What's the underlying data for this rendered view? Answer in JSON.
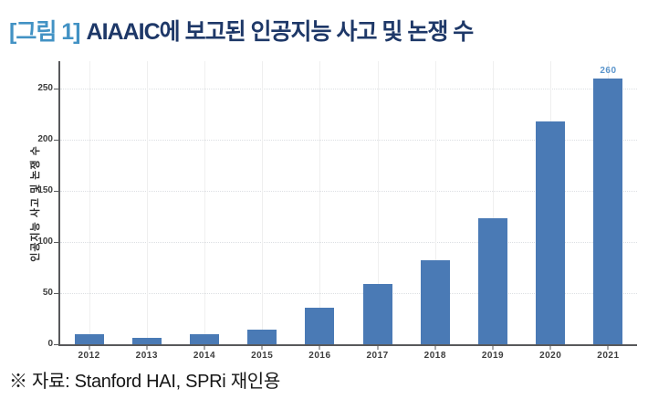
{
  "figure": {
    "label": "[그림 1]",
    "title": "AIAAIC에 보고된 인공지능 사고 및 논쟁 수"
  },
  "source_note": "※ 자료:  Stanford HAI, SPRi 재인용",
  "colors": {
    "figure_label_blue": "#4292c4",
    "title_navy": "#1e3868",
    "bar_blue": "#4a7ab5",
    "value_label_blue": "#5b95cc",
    "axis_gray": "#58595b",
    "grid_gray": "#dcdfe3",
    "grid_gray_v": "#efefef",
    "tick_text": "#3d3d3d",
    "source_text": "#161616"
  },
  "chart_data": {
    "type": "bar",
    "categories": [
      "2012",
      "2013",
      "2014",
      "2015",
      "2016",
      "2017",
      "2018",
      "2019",
      "2020",
      "2021"
    ],
    "values": [
      10,
      6,
      10,
      14,
      36,
      59,
      82,
      123,
      218,
      260
    ],
    "title": "",
    "xlabel": "",
    "ylabel": "인공지능 사고 및 논쟁 수",
    "ylim": [
      0,
      277
    ],
    "yticks": [
      0,
      50,
      100,
      150,
      200,
      250
    ],
    "grid": true,
    "legend_position": "none",
    "bar_color": "#4a7ab5",
    "value_labels": [
      {
        "category": "2021",
        "label": "260"
      }
    ]
  }
}
